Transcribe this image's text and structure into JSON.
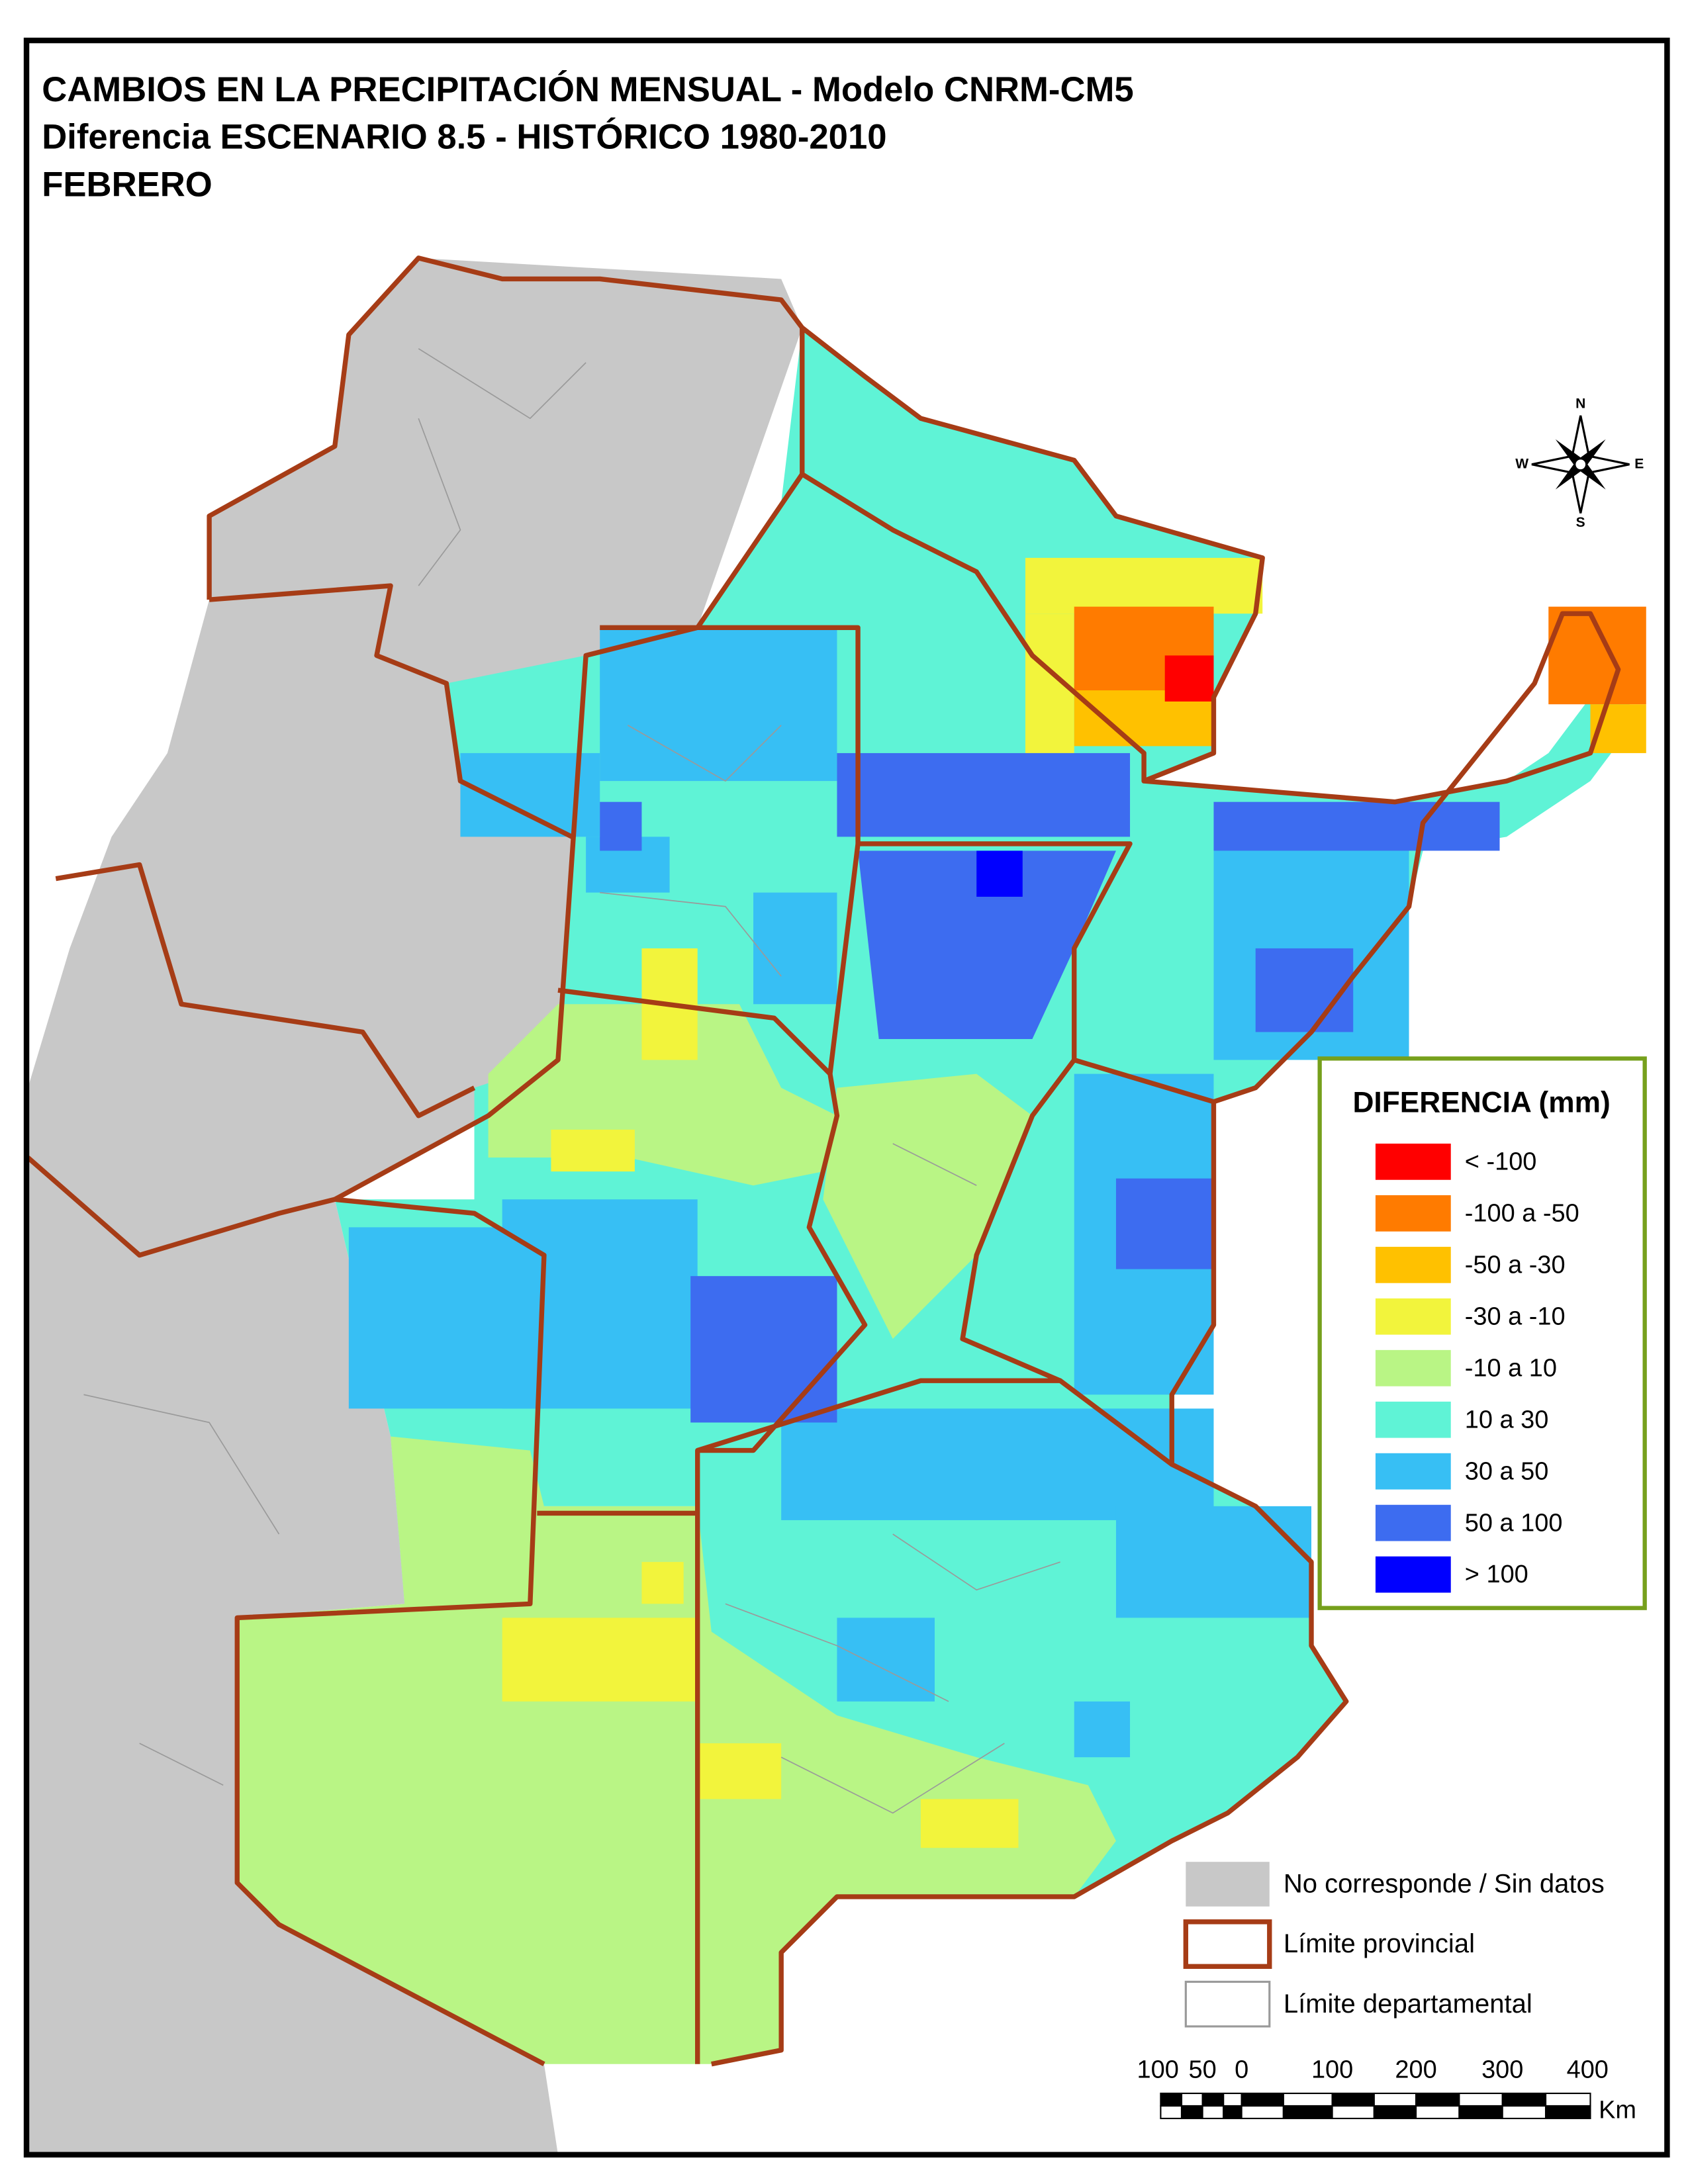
{
  "title": [
    "CAMBIOS EN LA PRECIPITACIÓN MENSUAL - Modelo CNRM-CM5",
    "Diferencia ESCENARIO 8.5 - HISTÓRICO 1980-2010",
    "FEBRERO"
  ],
  "legend": {
    "title": "DIFERENCIA (mm)",
    "border_color": "#76a01c",
    "items": [
      {
        "label": "< -100",
        "color": "#ff0000"
      },
      {
        "label": "-100 a -50",
        "color": "#ff7b00"
      },
      {
        "label": "-50 a -30",
        "color": "#ffc100"
      },
      {
        "label": "-30 a -10",
        "color": "#f2f43c"
      },
      {
        "label": "-10 a 10",
        "color": "#b9f585"
      },
      {
        "label": "10 a 30",
        "color": "#5ff3d6"
      },
      {
        "label": "30 a 50",
        "color": "#37bff4"
      },
      {
        "label": "50 a 100",
        "color": "#3d6cf0"
      },
      {
        "label": "> 100",
        "color": "#0000ff"
      }
    ]
  },
  "other_legend": [
    {
      "label": "No corresponde / Sin datos",
      "color": "#c8c8c8"
    },
    {
      "label": "Límite provincial",
      "color": "#a63c16"
    },
    {
      "label": "Límite departamental",
      "color": "#9a9a9a"
    }
  ],
  "scale_bar": {
    "labels": [
      "100",
      "50",
      "0",
      "100",
      "200",
      "300",
      "400"
    ],
    "unit": "Km"
  },
  "compass": {
    "north": "N",
    "south": "S",
    "east": "E",
    "west": "W"
  }
}
